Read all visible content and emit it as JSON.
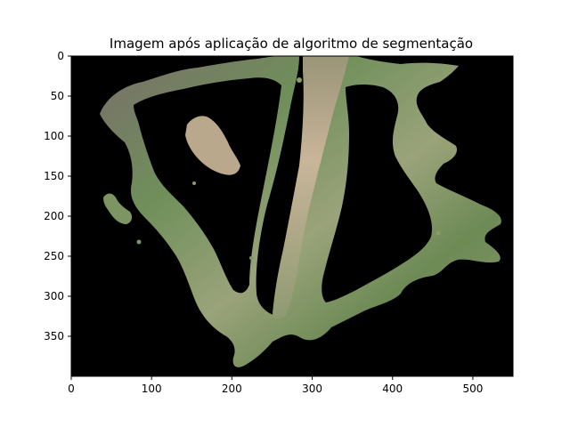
{
  "chart_data": {
    "type": "image",
    "title": "Imagem após aplicação de algoritmo de segmentação",
    "xlabel": "",
    "ylabel": "",
    "xlim": [
      0,
      550
    ],
    "ylim": [
      400,
      0
    ],
    "x_ticks": [
      0,
      100,
      200,
      300,
      400,
      500
    ],
    "y_ticks": [
      0,
      50,
      100,
      150,
      200,
      250,
      300,
      350
    ],
    "background_color": "#000000",
    "vegetation_colors": [
      "#6f8f5a",
      "#8a9b6c",
      "#a39a86",
      "#b8a38a",
      "#5e6e4a"
    ],
    "grid": false,
    "legend": "none"
  }
}
